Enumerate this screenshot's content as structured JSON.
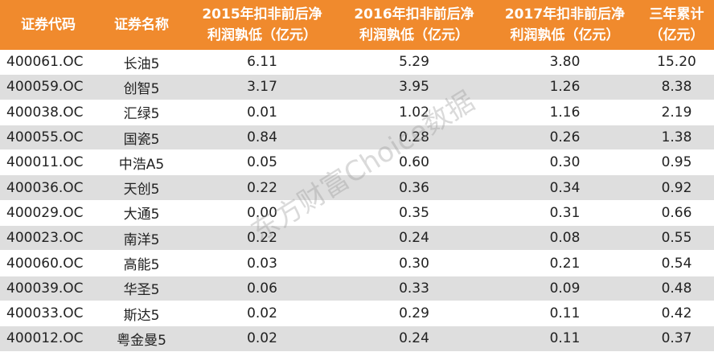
{
  "table": {
    "header": [
      [
        "证券代码"
      ],
      [
        "证券名称"
      ],
      [
        "2015年扣非前后净",
        "利润孰低（亿元）"
      ],
      [
        "2016年扣非前后净",
        "利润孰低（亿元）"
      ],
      [
        "2017年扣非前后净",
        "利润孰低（亿元）"
      ],
      [
        "三年累计",
        "（亿元）"
      ]
    ],
    "rows": [
      [
        "400061.OC",
        "长油5",
        "6.11",
        "5.29",
        "3.80",
        "15.20"
      ],
      [
        "400059.OC",
        "创智5",
        "3.17",
        "3.95",
        "1.26",
        "8.38"
      ],
      [
        "400038.OC",
        "汇绿5",
        "0.01",
        "1.02",
        "1.16",
        "2.19"
      ],
      [
        "400055.OC",
        "国瓷5",
        "0.84",
        "0.28",
        "0.26",
        "1.38"
      ],
      [
        "400011.OC",
        "中浩A5",
        "0.05",
        "0.60",
        "0.30",
        "0.95"
      ],
      [
        "400036.OC",
        "天创5",
        "0.22",
        "0.36",
        "0.34",
        "0.92"
      ],
      [
        "400029.OC",
        "大通5",
        "0.00",
        "0.35",
        "0.31",
        "0.66"
      ],
      [
        "400023.OC",
        "南洋5",
        "0.22",
        "0.24",
        "0.08",
        "0.55"
      ],
      [
        "400060.OC",
        "高能5",
        "0.03",
        "0.30",
        "0.21",
        "0.54"
      ],
      [
        "400039.OC",
        "华圣5",
        "0.06",
        "0.33",
        "0.09",
        "0.48"
      ],
      [
        "400033.OC",
        "斯达5",
        "0.02",
        "0.29",
        "0.11",
        "0.42"
      ],
      [
        "400012.OC",
        "粤金曼5",
        "0.02",
        "0.24",
        "0.11",
        "0.37"
      ]
    ]
  },
  "watermark": "东方财富Choice数据"
}
